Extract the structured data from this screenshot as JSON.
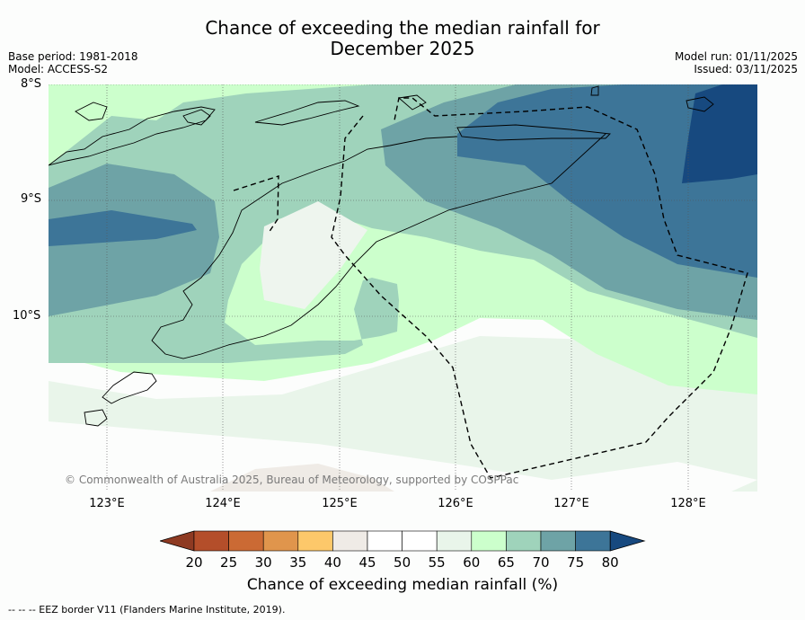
{
  "title_line1": "Chance of exceeding the median rainfall for",
  "title_line2": "December 2025",
  "base_period": "Base period: 1981-2018",
  "model": "Model: ACCESS-S2",
  "model_run": "Model run: 01/11/2025",
  "issued": "Issued: 03/11/2025",
  "lat_labels": [
    "8°S",
    "9°S",
    "10°S"
  ],
  "lon_labels": [
    "123°E",
    "124°E",
    "125°E",
    "126°E",
    "127°E",
    "128°E"
  ],
  "copyright": "© Commonwealth of Australia 2025, Bureau of Meteorology, supported by COSPPac",
  "colorbar": {
    "ticks": [
      "20",
      "25",
      "30",
      "35",
      "40",
      "45",
      "50",
      "55",
      "60",
      "65",
      "70",
      "75",
      "80"
    ],
    "colors": [
      "#8e3a22",
      "#b44e2a",
      "#cb6a34",
      "#e0954c",
      "#fdc86a",
      "#efebe6",
      "#ffffff",
      "#ffffff",
      "#e9f5ea",
      "#ccffcc",
      "#9fd3bb",
      "#6ea3a6",
      "#3d7598",
      "#17497f"
    ],
    "title": "Chance of exceeding median rainfall (%)"
  },
  "eez_legend": "--  --  -- EEZ border V11 (Flanders Marine Institute, 2019)."
}
